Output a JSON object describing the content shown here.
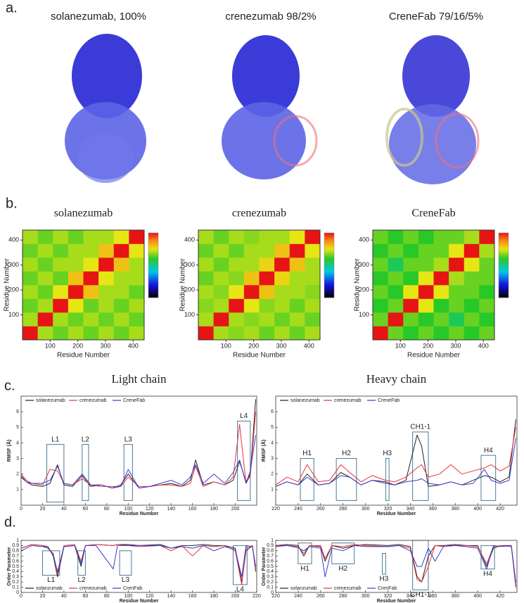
{
  "figure": {
    "panel_labels": [
      "a.",
      "b.",
      "c.",
      "d."
    ],
    "structure_titles": [
      "solanezumab, 100%",
      "crenezumab 98/2%",
      "CreneFab 79/16/5%"
    ]
  },
  "chart_data": [
    {
      "type": "heatmap",
      "title": "solanezumab",
      "xlabel": "Residue Number",
      "ylabel": "Residue Number",
      "xlim": [
        0,
        440
      ],
      "ylim": [
        0,
        440
      ],
      "xticks": [
        100,
        200,
        300,
        400
      ],
      "yticks": [
        100,
        200,
        300,
        400
      ],
      "clim": [
        -1,
        1
      ],
      "bins": [
        0,
        55,
        110,
        165,
        220,
        275,
        330,
        385,
        440
      ],
      "matrix": [
        [
          1,
          0.4,
          0.3,
          0.4,
          0.3,
          0.4,
          0.3,
          0.4
        ],
        [
          0.4,
          1,
          0.4,
          0.3,
          0.4,
          0.3,
          0.4,
          0.3
        ],
        [
          0.3,
          0.4,
          1,
          0.5,
          0.3,
          0.4,
          0.3,
          0.4
        ],
        [
          0.4,
          0.3,
          0.5,
          1,
          0.6,
          0.4,
          0.4,
          0.3
        ],
        [
          0.3,
          0.4,
          0.3,
          0.6,
          1,
          0.5,
          0.4,
          0.4
        ],
        [
          0.4,
          0.3,
          0.4,
          0.4,
          0.5,
          1,
          0.6,
          0.4
        ],
        [
          0.3,
          0.4,
          0.3,
          0.4,
          0.4,
          0.6,
          1,
          0.5
        ],
        [
          0.4,
          0.3,
          0.4,
          0.3,
          0.4,
          0.4,
          0.5,
          1
        ]
      ]
    },
    {
      "type": "heatmap",
      "title": "crenezumab",
      "xlabel": "Residue Number",
      "ylabel": "Residue Number",
      "xlim": [
        0,
        440
      ],
      "ylim": [
        0,
        440
      ],
      "xticks": [
        100,
        200,
        300,
        400
      ],
      "yticks": [
        100,
        200,
        300,
        400
      ],
      "clim": [
        -1,
        1
      ],
      "bins": [
        0,
        55,
        110,
        165,
        220,
        275,
        330,
        385,
        440
      ],
      "matrix": [
        [
          1,
          0.4,
          0.35,
          0.4,
          0.3,
          0.4,
          0.3,
          0.4
        ],
        [
          0.4,
          1,
          0.4,
          0.35,
          0.4,
          0.3,
          0.4,
          0.3
        ],
        [
          0.35,
          0.4,
          1,
          0.5,
          0.35,
          0.4,
          0.3,
          0.4
        ],
        [
          0.4,
          0.35,
          0.5,
          1,
          0.6,
          0.4,
          0.4,
          0.35
        ],
        [
          0.3,
          0.4,
          0.35,
          0.6,
          1,
          0.55,
          0.4,
          0.4
        ],
        [
          0.4,
          0.3,
          0.4,
          0.4,
          0.55,
          1,
          0.6,
          0.4
        ],
        [
          0.3,
          0.4,
          0.3,
          0.4,
          0.4,
          0.6,
          1,
          0.5
        ],
        [
          0.4,
          0.3,
          0.4,
          0.35,
          0.4,
          0.4,
          0.5,
          1
        ]
      ]
    },
    {
      "type": "heatmap",
      "title": "CreneFab",
      "xlabel": "Residue Number",
      "ylabel": "Residue Number",
      "xlim": [
        0,
        440
      ],
      "ylim": [
        0,
        440
      ],
      "xticks": [
        100,
        200,
        300,
        400
      ],
      "yticks": [
        100,
        200,
        300,
        400
      ],
      "clim": [
        -1,
        1
      ],
      "bins": [
        0,
        55,
        110,
        165,
        220,
        275,
        330,
        385,
        440
      ],
      "matrix": [
        [
          1,
          0.3,
          0.2,
          0.3,
          0.2,
          0.3,
          0.2,
          0.3
        ],
        [
          0.3,
          1,
          0.3,
          0.2,
          0.3,
          0.1,
          0.3,
          0.2
        ],
        [
          0.2,
          0.3,
          1,
          0.5,
          0.2,
          0.3,
          0.2,
          0.3
        ],
        [
          0.3,
          0.2,
          0.5,
          1,
          0.5,
          0.3,
          0.3,
          0.2
        ],
        [
          0.2,
          0.3,
          0.2,
          0.5,
          1,
          0.4,
          0.3,
          0.3
        ],
        [
          0.3,
          0.1,
          0.3,
          0.3,
          0.4,
          1,
          0.5,
          0.3
        ],
        [
          0.2,
          0.3,
          0.2,
          0.3,
          0.3,
          0.5,
          1,
          0.4
        ],
        [
          0.3,
          0.2,
          0.3,
          0.2,
          0.3,
          0.3,
          0.4,
          1
        ]
      ]
    },
    {
      "type": "line",
      "title": "Light chain",
      "xlabel": "Residue Number",
      "ylabel": "RMSF (Å)",
      "xlim": [
        0,
        220
      ],
      "ylim": [
        0,
        7
      ],
      "xticks": [
        0,
        20,
        40,
        60,
        80,
        100,
        120,
        140,
        160,
        180,
        200
      ],
      "yticks": [
        1,
        2,
        3,
        4,
        5,
        6
      ],
      "legend": "top",
      "region_label": "above",
      "x": [
        0,
        5,
        10,
        20,
        27,
        34,
        40,
        48,
        57,
        65,
        75,
        85,
        93,
        100,
        110,
        120,
        130,
        140,
        150,
        158,
        163,
        170,
        180,
        190,
        198,
        204,
        210,
        214,
        219
      ],
      "series": [
        {
          "name": "solanezumab",
          "color": "#222222",
          "values": [
            1.8,
            1.5,
            1.3,
            1.2,
            1.4,
            2.6,
            1.3,
            1.2,
            1.9,
            1.2,
            1.3,
            1.1,
            1.3,
            2.0,
            1.1,
            1.2,
            1.3,
            1.4,
            1.2,
            1.6,
            2.9,
            1.3,
            1.5,
            1.3,
            1.6,
            2.8,
            1.5,
            2.0,
            6.8
          ]
        },
        {
          "name": "crenezumab",
          "color": "#e8333a",
          "values": [
            2.0,
            1.6,
            1.4,
            1.3,
            2.3,
            2.2,
            1.4,
            1.3,
            1.7,
            1.3,
            1.2,
            1.2,
            1.2,
            1.8,
            1.2,
            1.2,
            1.3,
            1.3,
            1.2,
            1.4,
            2.5,
            1.2,
            1.5,
            1.3,
            1.8,
            5.2,
            1.4,
            1.9,
            6.0
          ]
        },
        {
          "name": "CreneFab",
          "color": "#3a3ad0",
          "values": [
            1.9,
            1.5,
            1.4,
            1.4,
            1.6,
            2.5,
            1.4,
            1.3,
            2.0,
            1.3,
            1.3,
            1.1,
            1.2,
            2.3,
            1.1,
            1.2,
            1.4,
            1.6,
            1.3,
            1.8,
            2.6,
            1.4,
            2.0,
            1.4,
            2.1,
            2.9,
            1.4,
            2.2,
            4.5
          ]
        }
      ],
      "regions": [
        {
          "label": "L1",
          "x": [
            24,
            40
          ],
          "y": [
            0.2,
            3.9
          ]
        },
        {
          "label": "L2",
          "x": [
            57,
            63
          ],
          "y": [
            0.3,
            3.9
          ]
        },
        {
          "label": "L3",
          "x": [
            96,
            104
          ],
          "y": [
            0.3,
            3.9
          ]
        },
        {
          "label": "L4",
          "x": [
            202,
            214
          ],
          "y": [
            0.3,
            5.4
          ]
        }
      ]
    },
    {
      "type": "line",
      "title": "Heavy chain",
      "xlabel": "Residue Number",
      "ylabel": "RMSF (Å)",
      "xlim": [
        220,
        435
      ],
      "ylim": [
        0,
        7
      ],
      "xticks": [
        220,
        240,
        260,
        280,
        300,
        320,
        340,
        360,
        380,
        400,
        420
      ],
      "yticks": [
        1,
        2,
        3,
        4,
        5,
        6
      ],
      "legend": "top",
      "region_label": "above",
      "x": [
        220,
        230,
        240,
        248,
        258,
        268,
        278,
        286,
        296,
        306,
        318,
        326,
        336,
        346,
        350,
        356,
        366,
        376,
        386,
        396,
        406,
        412,
        420,
        428,
        434
      ],
      "series": [
        {
          "name": "solanezumab",
          "color": "#222222",
          "values": [
            1.2,
            1.5,
            1.3,
            2.0,
            1.3,
            1.4,
            2.1,
            1.8,
            1.3,
            1.6,
            1.5,
            1.3,
            1.6,
            4.5,
            3.8,
            1.2,
            1.3,
            1.5,
            1.3,
            1.6,
            1.9,
            1.8,
            1.5,
            1.8,
            5.5
          ]
        },
        {
          "name": "crenezumab",
          "color": "#e8333a",
          "values": [
            1.3,
            1.8,
            1.5,
            2.6,
            1.5,
            1.6,
            2.6,
            2.1,
            1.5,
            1.9,
            1.6,
            1.5,
            1.8,
            2.4,
            2.6,
            1.8,
            2.0,
            2.6,
            2.0,
            2.2,
            2.4,
            2.6,
            2.2,
            2.5,
            5.0
          ]
        },
        {
          "name": "CreneFab",
          "color": "#3a3ad0",
          "values": [
            1.2,
            1.5,
            1.3,
            1.8,
            1.3,
            1.4,
            1.9,
            1.8,
            1.3,
            1.6,
            1.4,
            1.3,
            1.5,
            1.6,
            1.7,
            1.4,
            1.3,
            1.5,
            1.3,
            1.4,
            2.3,
            1.6,
            1.4,
            1.6,
            4.3
          ]
        }
      ],
      "regions": [
        {
          "label": "H1",
          "x": [
            242,
            254
          ],
          "y": [
            0.3,
            3.0
          ]
        },
        {
          "label": "H2",
          "x": [
            274,
            292
          ],
          "y": [
            0.3,
            3.0
          ]
        },
        {
          "label": "H3",
          "x": [
            318,
            321
          ],
          "y": [
            0.3,
            3.0
          ]
        },
        {
          "label": "CH1-1",
          "x": [
            342,
            356
          ],
          "y": [
            0.3,
            4.7
          ]
        },
        {
          "label": "H4",
          "x": [
            403,
            416
          ],
          "y": [
            0.3,
            3.2
          ]
        }
      ]
    },
    {
      "type": "line",
      "xlabel": "Residue Number",
      "ylabel": "Order Parameter",
      "xlim": [
        0,
        220
      ],
      "ylim": [
        0,
        1
      ],
      "xticks": [
        0,
        20,
        40,
        60,
        80,
        100,
        120,
        140,
        160,
        180,
        200,
        220
      ],
      "yticks": [
        0,
        0.1,
        0.2,
        0.3,
        0.4,
        0.5,
        0.6,
        0.7,
        0.8,
        0.9,
        1
      ],
      "legend": "bottom",
      "region_label": "below",
      "x": [
        0,
        10,
        20,
        25,
        30,
        34,
        40,
        50,
        56,
        60,
        70,
        86,
        90,
        100,
        110,
        130,
        140,
        150,
        160,
        170,
        180,
        190,
        200,
        206,
        210,
        216,
        219
      ],
      "series": [
        {
          "name": "solanzumab",
          "color": "#222222",
          "values": [
            0.85,
            0.92,
            0.9,
            0.88,
            0.7,
            0.3,
            0.88,
            0.9,
            0.5,
            0.9,
            0.92,
            0.9,
            0.92,
            0.92,
            0.9,
            0.92,
            0.85,
            0.9,
            0.9,
            0.92,
            0.9,
            0.9,
            0.85,
            0.2,
            0.8,
            0.9,
            0.4
          ]
        },
        {
          "name": "crenezumab",
          "color": "#e8333a",
          "values": [
            0.85,
            0.92,
            0.9,
            0.85,
            0.75,
            0.35,
            0.9,
            0.92,
            0.6,
            0.9,
            0.92,
            0.9,
            0.92,
            0.9,
            0.88,
            0.9,
            0.8,
            0.9,
            0.7,
            0.9,
            0.88,
            0.9,
            0.8,
            0.15,
            0.85,
            0.9,
            0.45
          ]
        },
        {
          "name": "CrenFab",
          "color": "#3a3ad0",
          "values": [
            0.8,
            0.9,
            0.88,
            0.85,
            0.72,
            0.4,
            0.88,
            0.9,
            0.55,
            0.9,
            0.9,
            0.45,
            0.9,
            0.9,
            0.9,
            0.9,
            0.85,
            0.88,
            0.85,
            0.9,
            0.8,
            0.88,
            0.82,
            0.3,
            0.9,
            0.88,
            0.5
          ]
        }
      ],
      "regions": [
        {
          "label": "L1",
          "x": [
            20,
            36
          ],
          "y": [
            0.33,
            0.8
          ]
        },
        {
          "label": "L2",
          "x": [
            53,
            60
          ],
          "y": [
            0.33,
            0.8
          ]
        },
        {
          "label": "L3",
          "x": [
            92,
            103
          ],
          "y": [
            0.33,
            0.8
          ]
        },
        {
          "label": "L4",
          "x": [
            198,
            211
          ],
          "y": [
            0.15,
            0.9
          ]
        }
      ]
    },
    {
      "type": "line",
      "xlabel": "Residue Number",
      "ylabel": "Order Parameter",
      "xlim": [
        220,
        435
      ],
      "ylim": [
        0,
        1
      ],
      "xticks": [
        220,
        240,
        260,
        280,
        300,
        320,
        340,
        360,
        380,
        400,
        420
      ],
      "yticks": [
        0,
        0.1,
        0.2,
        0.3,
        0.4,
        0.5,
        0.6,
        0.7,
        0.8,
        0.9,
        1
      ],
      "legend": "bottom",
      "region_label": "below",
      "x": [
        220,
        230,
        240,
        245,
        250,
        260,
        264,
        270,
        280,
        290,
        300,
        320,
        330,
        340,
        346,
        350,
        356,
        362,
        370,
        380,
        390,
        400,
        408,
        414,
        420,
        430,
        434
      ],
      "series": [
        {
          "name": "solanzumab",
          "color": "#222222",
          "values": [
            0.9,
            0.92,
            0.9,
            0.7,
            0.9,
            0.88,
            0.6,
            0.9,
            0.85,
            0.9,
            0.92,
            0.9,
            0.92,
            0.88,
            0.3,
            0.2,
            0.7,
            0.9,
            0.9,
            0.92,
            0.9,
            0.9,
            0.5,
            0.85,
            0.9,
            0.9,
            0.1
          ]
        },
        {
          "name": "crenezumab",
          "color": "#e8333a",
          "values": [
            0.9,
            0.9,
            0.88,
            0.75,
            0.9,
            0.9,
            0.65,
            0.9,
            0.88,
            0.92,
            0.9,
            0.88,
            0.9,
            0.85,
            0.25,
            0.2,
            0.5,
            0.9,
            0.88,
            0.9,
            0.9,
            0.88,
            0.55,
            0.88,
            0.9,
            0.88,
            0.15
          ]
        },
        {
          "name": "CrenFab",
          "color": "#3a3ad0",
          "values": [
            0.88,
            0.9,
            0.86,
            0.8,
            0.88,
            0.85,
            0.3,
            0.85,
            0.8,
            0.9,
            0.88,
            0.88,
            0.9,
            0.8,
            0.5,
            0.5,
            0.85,
            0.6,
            0.9,
            0.9,
            0.88,
            0.85,
            0.45,
            0.9,
            0.88,
            0.9,
            0.2
          ]
        }
      ],
      "regions": [
        {
          "label": "H1",
          "x": [
            240,
            252
          ],
          "y": [
            0.55,
            0.95
          ]
        },
        {
          "label": "H2",
          "x": [
            270,
            290
          ],
          "y": [
            0.55,
            0.95
          ]
        },
        {
          "label": "H3",
          "x": [
            315,
            318
          ],
          "y": [
            0.35,
            0.75
          ]
        },
        {
          "label": "CH1-1",
          "x": [
            342,
            356
          ],
          "y": [
            0.05,
            1.0
          ]
        },
        {
          "label": "H4",
          "x": [
            403,
            415
          ],
          "y": [
            0.45,
            0.9
          ]
        }
      ]
    }
  ]
}
